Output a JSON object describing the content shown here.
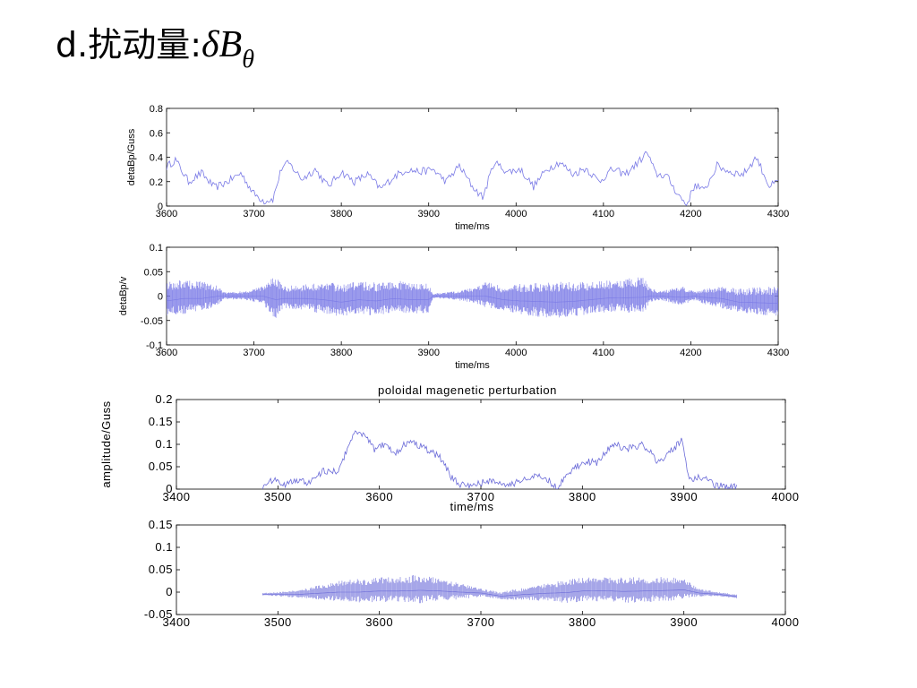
{
  "slide": {
    "title_prefix": "d.扰动量:",
    "symbol": "δB",
    "subscript": "θ"
  },
  "chart_data": [
    {
      "type": "line",
      "title": "",
      "xlabel": "time/ms",
      "ylabel": "detaBp/Guss",
      "xlim": [
        3600,
        4300
      ],
      "ylim": [
        0,
        0.8
      ],
      "xticks": [
        3600,
        3700,
        3800,
        3900,
        4000,
        4100,
        4200,
        4300
      ],
      "yticks": [
        0,
        0.2,
        0.4,
        0.6,
        0.8
      ],
      "ytick_labels": [
        "0",
        "0.2",
        "0.4",
        "0.6",
        "0.8"
      ],
      "color": "#7a7ae6",
      "x": [
        3600,
        3610,
        3625,
        3640,
        3655,
        3670,
        3685,
        3700,
        3712,
        3722,
        3732,
        3740,
        3755,
        3770,
        3785,
        3800,
        3815,
        3830,
        3845,
        3860,
        3875,
        3890,
        3905,
        3920,
        3935,
        3950,
        3962,
        3975,
        3990,
        4005,
        4020,
        4035,
        4050,
        4065,
        4080,
        4095,
        4110,
        4125,
        4140,
        4150,
        4160,
        4172,
        4185,
        4195,
        4205,
        4215,
        4230,
        4245,
        4260,
        4275,
        4290,
        4300
      ],
      "y": [
        0.32,
        0.38,
        0.2,
        0.27,
        0.15,
        0.2,
        0.27,
        0.1,
        0.04,
        0.06,
        0.32,
        0.35,
        0.22,
        0.3,
        0.16,
        0.28,
        0.2,
        0.26,
        0.14,
        0.24,
        0.3,
        0.28,
        0.3,
        0.2,
        0.33,
        0.16,
        0.07,
        0.36,
        0.28,
        0.3,
        0.16,
        0.3,
        0.36,
        0.26,
        0.31,
        0.2,
        0.3,
        0.26,
        0.36,
        0.44,
        0.26,
        0.25,
        0.1,
        0.01,
        0.18,
        0.12,
        0.33,
        0.28,
        0.26,
        0.4,
        0.16,
        0.2
      ]
    },
    {
      "type": "area",
      "title": "",
      "xlabel": "time/ms",
      "ylabel": "detaBp/v",
      "xlim": [
        3600,
        4300
      ],
      "ylim": [
        -0.1,
        0.1
      ],
      "xticks": [
        3600,
        3700,
        3800,
        3900,
        4000,
        4100,
        4200,
        4300
      ],
      "yticks": [
        -0.1,
        -0.05,
        0,
        0.05,
        0.1
      ],
      "ytick_labels": [
        "-0.1",
        "-0.05",
        "0",
        "0.05",
        "0.1"
      ],
      "color": "#7a7ae6",
      "x": [
        3600,
        3620,
        3640,
        3660,
        3665,
        3690,
        3710,
        3725,
        3735,
        3760,
        3780,
        3800,
        3820,
        3840,
        3860,
        3880,
        3900,
        3905,
        3930,
        3955,
        3965,
        3985,
        4005,
        4025,
        4045,
        4065,
        4085,
        4105,
        4125,
        4145,
        4155,
        4165,
        4190,
        4205,
        4215,
        4235,
        4255,
        4275,
        4300
      ],
      "upper": [
        0.03,
        0.035,
        0.03,
        0.02,
        0.008,
        0.01,
        0.02,
        0.045,
        0.02,
        0.025,
        0.03,
        0.025,
        0.03,
        0.028,
        0.032,
        0.03,
        0.025,
        0.005,
        0.01,
        0.02,
        0.03,
        0.02,
        0.025,
        0.028,
        0.03,
        0.028,
        0.03,
        0.032,
        0.035,
        0.04,
        0.015,
        0.01,
        0.02,
        0.01,
        0.015,
        0.02,
        0.015,
        0.018,
        0.02
      ],
      "lower": [
        -0.05,
        -0.045,
        -0.04,
        -0.02,
        -0.008,
        -0.01,
        -0.02,
        -0.06,
        -0.03,
        -0.035,
        -0.045,
        -0.05,
        -0.045,
        -0.048,
        -0.042,
        -0.045,
        -0.04,
        -0.005,
        -0.01,
        -0.02,
        -0.03,
        -0.035,
        -0.045,
        -0.05,
        -0.055,
        -0.05,
        -0.045,
        -0.04,
        -0.042,
        -0.045,
        -0.015,
        -0.01,
        -0.025,
        -0.01,
        -0.02,
        -0.03,
        -0.04,
        -0.045,
        -0.05
      ]
    },
    {
      "type": "line",
      "title": "poloidal magenetic perturbation",
      "xlabel": "time/ms",
      "ylabel": "amplitude/Guss",
      "xlim": [
        3400,
        4000
      ],
      "ylim": [
        0,
        0.2
      ],
      "xticks": [
        3400,
        3500,
        3600,
        3700,
        3800,
        3900,
        4000
      ],
      "yticks": [
        0,
        0.05,
        0.1,
        0.15,
        0.2
      ],
      "ytick_labels": [
        "0",
        "0.05",
        "0.1",
        "0.15",
        "0.2"
      ],
      "color": "#6a6ad8",
      "x": [
        3485,
        3495,
        3505,
        3515,
        3530,
        3545,
        3560,
        3575,
        3585,
        3595,
        3605,
        3615,
        3630,
        3645,
        3660,
        3670,
        3680,
        3695,
        3710,
        3725,
        3740,
        3760,
        3775,
        3790,
        3800,
        3815,
        3830,
        3845,
        3860,
        3875,
        3890,
        3898,
        3905,
        3915,
        3930,
        3945,
        3952
      ],
      "y": [
        0.005,
        0.02,
        0.01,
        0.02,
        0.015,
        0.04,
        0.04,
        0.13,
        0.12,
        0.09,
        0.1,
        0.08,
        0.11,
        0.09,
        0.07,
        0.03,
        0.01,
        0.01,
        0.02,
        0.005,
        0.02,
        0.03,
        0.005,
        0.04,
        0.06,
        0.06,
        0.1,
        0.09,
        0.1,
        0.06,
        0.09,
        0.11,
        0.02,
        0.03,
        0.01,
        0.005,
        0.005
      ]
    },
    {
      "type": "area",
      "title": "",
      "xlabel": "",
      "ylabel": "",
      "xlim": [
        3400,
        4000
      ],
      "ylim": [
        -0.05,
        0.15
      ],
      "xticks": [
        3400,
        3500,
        3600,
        3700,
        3800,
        3900,
        4000
      ],
      "yticks": [
        -0.05,
        0,
        0.05,
        0.1,
        0.15
      ],
      "ytick_labels": [
        "-0.05",
        "0",
        "0.05",
        "0.1",
        "0.15"
      ],
      "color": "#6a6ad8",
      "x": [
        3485,
        3500,
        3520,
        3540,
        3560,
        3580,
        3600,
        3620,
        3640,
        3660,
        3680,
        3700,
        3720,
        3728,
        3745,
        3765,
        3785,
        3800,
        3820,
        3840,
        3860,
        3880,
        3900,
        3915,
        3935,
        3952
      ],
      "upper": [
        -0.002,
        0.0,
        0.005,
        0.015,
        0.025,
        0.03,
        0.033,
        0.035,
        0.04,
        0.03,
        0.02,
        0.008,
        0.0,
        0.005,
        0.01,
        0.02,
        0.028,
        0.035,
        0.035,
        0.033,
        0.035,
        0.035,
        0.03,
        0.008,
        0.0,
        -0.005
      ],
      "lower": [
        -0.008,
        -0.01,
        -0.015,
        -0.02,
        -0.025,
        -0.03,
        -0.028,
        -0.03,
        -0.032,
        -0.025,
        -0.02,
        -0.012,
        -0.018,
        -0.02,
        -0.02,
        -0.025,
        -0.03,
        -0.03,
        -0.028,
        -0.03,
        -0.03,
        -0.028,
        -0.02,
        -0.012,
        -0.01,
        -0.015
      ]
    }
  ]
}
